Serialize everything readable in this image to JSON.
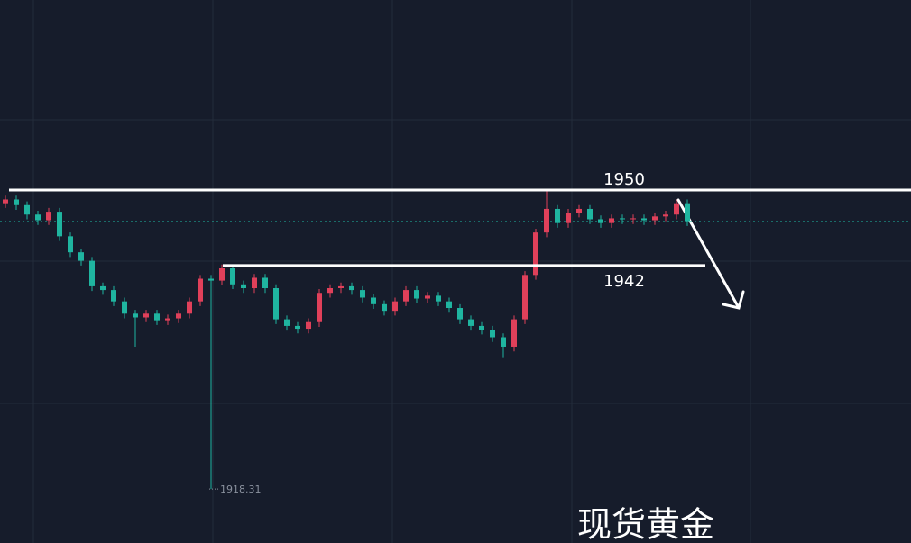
{
  "chart_data": {
    "type": "candlestick",
    "title": "现货黄金",
    "open": [
      1948.6,
      1949.0,
      1948.4,
      1947.4,
      1946.8,
      1947.7,
      1945.1,
      1943.4,
      1942.5,
      1939.8,
      1939.4,
      1938.2,
      1936.9,
      1936.5,
      1936.9,
      1936.2,
      1936.4,
      1936.9,
      1938.2,
      1940.6,
      1940.4,
      1941.7,
      1940.0,
      1939.6,
      1940.7,
      1939.6,
      1936.3,
      1935.6,
      1935.3,
      1936.0,
      1939.1,
      1939.6,
      1939.8,
      1939.4,
      1938.6,
      1937.9,
      1937.2,
      1938.2,
      1939.4,
      1938.5,
      1938.8,
      1938.2,
      1937.5,
      1936.3,
      1935.6,
      1935.2,
      1934.4,
      1933.4,
      1936.3,
      1941.0,
      1945.5,
      1948.0,
      1946.5,
      1947.6,
      1948.0,
      1946.9,
      1946.5,
      1947.0,
      1946.9,
      1947.0,
      1946.8,
      1947.2,
      1947.4,
      1948.6
    ],
    "high": [
      1949.4,
      1949.4,
      1948.8,
      1947.8,
      1948.1,
      1948.1,
      1945.5,
      1943.8,
      1942.9,
      1940.2,
      1939.8,
      1938.6,
      1937.3,
      1937.3,
      1937.3,
      1936.8,
      1937.3,
      1938.6,
      1941.0,
      1941.0,
      1942.1,
      1942.1,
      1940.4,
      1941.1,
      1941.1,
      1940.0,
      1936.7,
      1936.0,
      1936.4,
      1939.5,
      1940.0,
      1940.2,
      1940.2,
      1939.8,
      1939.0,
      1938.3,
      1938.6,
      1939.8,
      1939.8,
      1939.2,
      1939.2,
      1938.6,
      1937.9,
      1936.7,
      1936.0,
      1935.6,
      1934.8,
      1936.7,
      1941.4,
      1945.9,
      1949.9,
      1948.4,
      1948.0,
      1948.4,
      1948.4,
      1947.3,
      1947.4,
      1947.4,
      1947.4,
      1947.4,
      1947.6,
      1947.8,
      1949.0,
      1949.0
    ],
    "low": [
      1948.1,
      1947.9,
      1946.9,
      1946.3,
      1946.3,
      1944.6,
      1942.9,
      1942.0,
      1939.3,
      1938.9,
      1937.7,
      1936.4,
      1933.4,
      1936.0,
      1935.7,
      1935.7,
      1935.9,
      1936.4,
      1937.7,
      1918.31,
      1939.9,
      1939.5,
      1939.1,
      1939.1,
      1939.1,
      1935.8,
      1935.1,
      1934.8,
      1934.8,
      1935.5,
      1938.6,
      1939.1,
      1938.9,
      1938.1,
      1937.4,
      1936.7,
      1936.7,
      1937.7,
      1938.0,
      1938.0,
      1937.7,
      1937.0,
      1935.8,
      1935.1,
      1934.7,
      1933.9,
      1932.2,
      1932.9,
      1935.8,
      1940.5,
      1945.0,
      1946.0,
      1946.0,
      1947.1,
      1946.4,
      1946.0,
      1946.0,
      1946.4,
      1946.4,
      1946.3,
      1946.3,
      1946.7,
      1946.9,
      1946.2
    ],
    "close": [
      1949.0,
      1948.4,
      1947.4,
      1946.8,
      1947.7,
      1945.1,
      1943.4,
      1942.5,
      1939.8,
      1939.4,
      1938.2,
      1936.9,
      1936.5,
      1936.9,
      1936.2,
      1936.4,
      1936.9,
      1938.2,
      1940.6,
      1940.4,
      1941.7,
      1940.0,
      1939.6,
      1940.7,
      1939.6,
      1936.3,
      1935.6,
      1935.3,
      1936.0,
      1939.1,
      1939.6,
      1939.8,
      1939.4,
      1938.6,
      1937.9,
      1937.2,
      1938.2,
      1939.4,
      1938.5,
      1938.8,
      1938.2,
      1937.5,
      1936.3,
      1935.6,
      1935.2,
      1934.4,
      1933.4,
      1936.3,
      1941.0,
      1945.5,
      1948.0,
      1946.5,
      1947.6,
      1948.0,
      1946.9,
      1946.5,
      1947.0,
      1946.9,
      1947.0,
      1946.8,
      1947.2,
      1947.4,
      1948.6,
      1946.7
    ],
    "up_color": "#e0405a",
    "down_color": "#1fb5a0",
    "ylim": [
      1912.6,
      1970.13
    ],
    "levels": [
      {
        "value": 1950,
        "label": "1950"
      },
      {
        "value": 1942,
        "label": "1942"
      }
    ],
    "low_label": {
      "value": 1918.31,
      "label": "1918.31"
    }
  }
}
